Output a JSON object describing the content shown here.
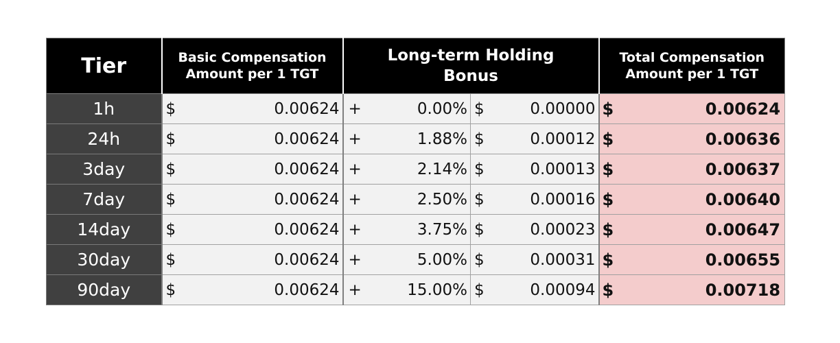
{
  "headers": {
    "tier": "Tier",
    "basic": [
      "Basic Compensation",
      "Amount per 1 TGT"
    ],
    "long_term": [
      "Long-term Holding",
      "Bonus"
    ],
    "total": [
      "Total Compensation",
      "Amount per 1 TGT"
    ]
  },
  "symbols": {
    "dollar": "$",
    "plus": "+"
  },
  "rows": [
    {
      "tier": "1h",
      "basic": "0.00624",
      "pct": "0.00%",
      "bonus": "0.00000",
      "total": "0.00624"
    },
    {
      "tier": "24h",
      "basic": "0.00624",
      "pct": "1.88%",
      "bonus": "0.00012",
      "total": "0.00636"
    },
    {
      "tier": "3day",
      "basic": "0.00624",
      "pct": "2.14%",
      "bonus": "0.00013",
      "total": "0.00637"
    },
    {
      "tier": "7day",
      "basic": "0.00624",
      "pct": "2.50%",
      "bonus": "0.00016",
      "total": "0.00640"
    },
    {
      "tier": "14day",
      "basic": "0.00624",
      "pct": "3.75%",
      "bonus": "0.00023",
      "total": "0.00647"
    },
    {
      "tier": "30day",
      "basic": "0.00624",
      "pct": "5.00%",
      "bonus": "0.00031",
      "total": "0.00655"
    },
    {
      "tier": "90day",
      "basic": "0.00624",
      "pct": "15.00%",
      "bonus": "0.00094",
      "total": "0.00718"
    }
  ],
  "colors": {
    "header_bg": "#000000",
    "tier_bg": "#404040",
    "cell_bg": "#f2f2f2",
    "total_bg": "#f4cccc"
  }
}
